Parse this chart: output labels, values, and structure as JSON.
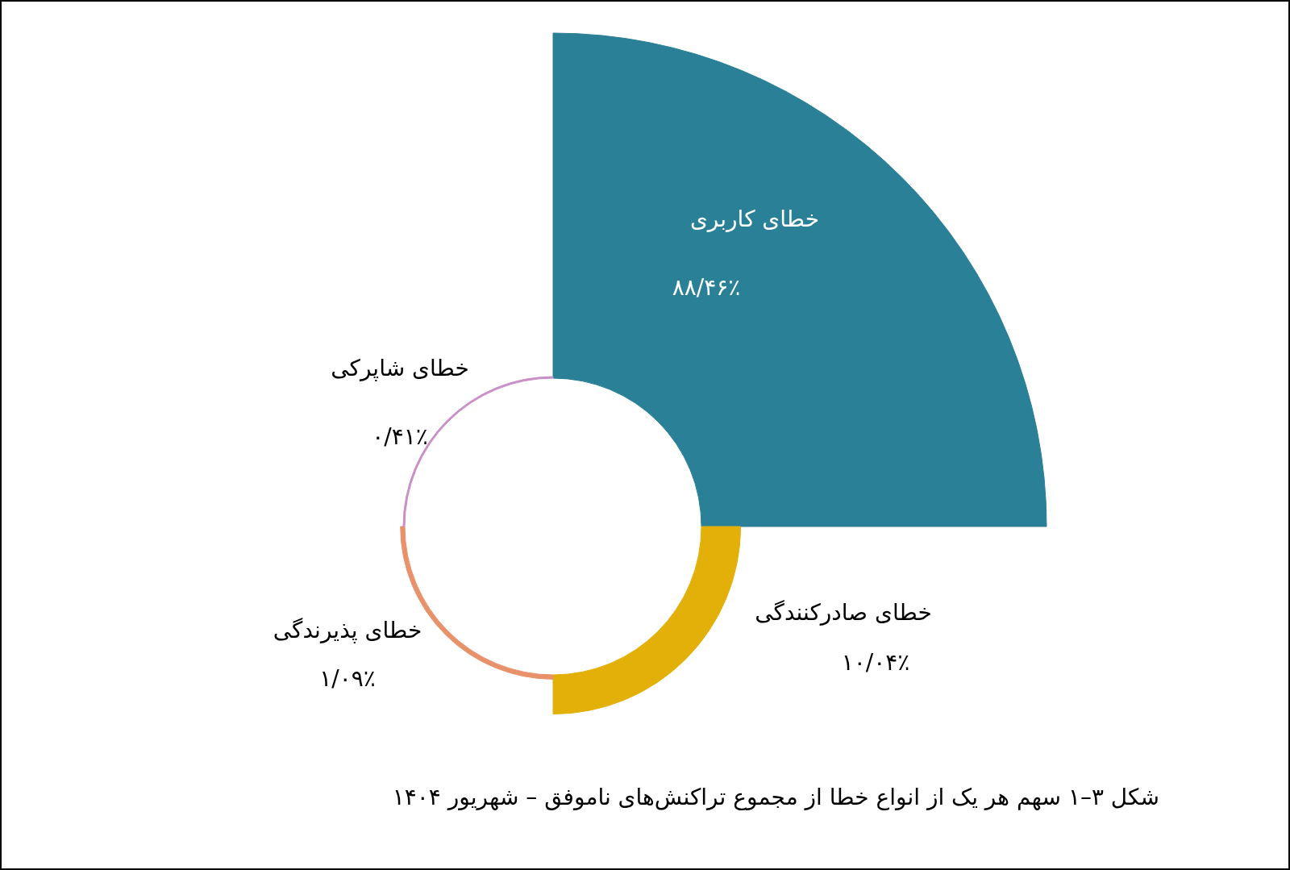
{
  "chart_data": {
    "type": "other",
    "categories": [
      "خطای کاربری",
      "خطای صادرکنندگی",
      "خطای پذیرندگی",
      "خطای شاپرکی"
    ],
    "values": [
      88.46,
      10.04,
      1.09,
      0.41
    ],
    "value_labels": [
      "۸۸/۴۶٪",
      "۱۰/۰۴٪",
      "۱/۰۹٪",
      "۰/۴۱٪"
    ],
    "colors": [
      "#2a8096",
      "#e3b00a",
      "#e8916b",
      "#c98fc6"
    ],
    "annotations": [
      "شکل ۳–۱ سهم هر یک از انواع خطا از مجموع تراکنش‌های ناموفق – شهریور ۱۴۰۴"
    ]
  }
}
